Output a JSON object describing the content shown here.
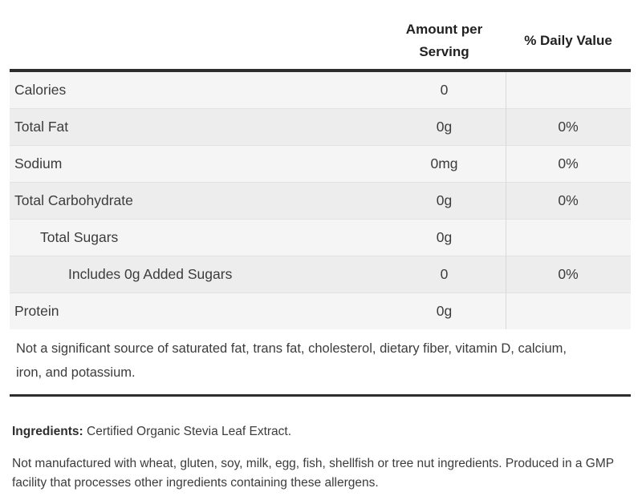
{
  "table": {
    "headers": {
      "amount": "Amount per Serving",
      "daily_value": "% Daily Value"
    },
    "rows": [
      {
        "label": "Calories",
        "amount": "0",
        "daily_value": "",
        "indent": 0
      },
      {
        "label": "Total Fat",
        "amount": "0g",
        "daily_value": "0%",
        "indent": 0
      },
      {
        "label": "Sodium",
        "amount": "0mg",
        "daily_value": "0%",
        "indent": 0
      },
      {
        "label": "Total Carbohydrate",
        "amount": "0g",
        "daily_value": "0%",
        "indent": 0
      },
      {
        "label": "Total Sugars",
        "amount": "0g",
        "daily_value": "",
        "indent": 1
      },
      {
        "label": "Includes 0g Added Sugars",
        "amount": "0",
        "daily_value": "0%",
        "indent": 2
      },
      {
        "label": "Protein",
        "amount": "0g",
        "daily_value": "",
        "indent": 0
      }
    ],
    "footnote": "Not a significant source of saturated fat, trans fat, cholesterol, dietary fiber, vitamin D, calcium, iron, and potassium."
  },
  "ingredients": {
    "label": "Ingredients:",
    "text": "Certified Organic Stevia Leaf Extract."
  },
  "allergen_statement": "Not manufactured with wheat, gluten, soy, milk, egg, fish, shellfish or tree nut ingredients. Produced in a GMP facility that processes other ingredients containing these allergens.",
  "colors": {
    "heavy_rule": "#2d2d2d",
    "stripe_light": "#f5f5f6",
    "stripe_dark": "#ededee",
    "column_divider": "#d9d9d9",
    "row_separator": "#e2e2e2",
    "text": "#3c3c3c",
    "header_text": "#222222"
  }
}
